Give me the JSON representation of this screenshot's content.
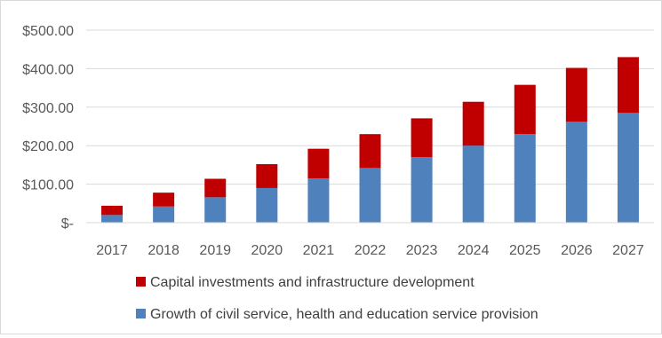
{
  "chart_data": {
    "type": "bar",
    "stacked": true,
    "categories": [
      "2017",
      "2018",
      "2019",
      "2020",
      "2021",
      "2022",
      "2023",
      "2024",
      "2025",
      "2026",
      "2027"
    ],
    "series": [
      {
        "name": "Growth of civil service, health and education service provision",
        "color": "#4F81BD",
        "values": [
          20,
          42,
          66,
          90,
          115,
          142,
          170,
          200,
          230,
          262,
          285
        ]
      },
      {
        "name": "Capital investments and infrastructure development",
        "color": "#C00000",
        "values": [
          24,
          36,
          48,
          62,
          77,
          88,
          101,
          114,
          128,
          140,
          145
        ]
      }
    ],
    "y_ticks": [
      0,
      100,
      200,
      300,
      400,
      500
    ],
    "y_tick_labels": [
      "$-",
      "$100.00",
      "$200.00",
      "$300.00",
      "$400.00",
      "$500.00"
    ],
    "ylim": [
      0,
      500
    ],
    "grid": true,
    "legend_placement": "bottom",
    "legend_order": [
      1,
      0
    ]
  }
}
